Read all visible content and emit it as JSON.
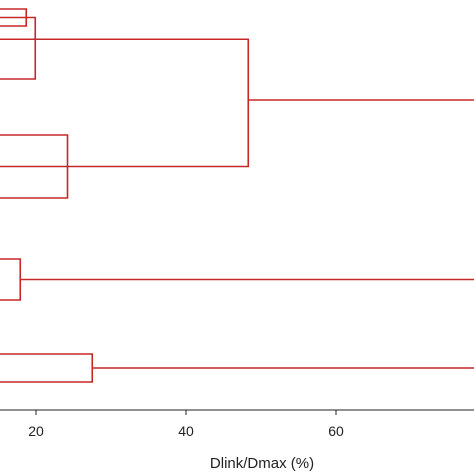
{
  "chart_data": {
    "type": "dendrogram",
    "xlabel": "Dlink/Dmax (%)",
    "xticks": [
      20,
      40,
      60
    ],
    "xlim": [
      15.3,
      80
    ],
    "orientation": "horizontal",
    "link_color": "#c62828",
    "leaf_rows": 8,
    "links": [
      {
        "height": 18.7,
        "rows": [
          0,
          1
        ]
      },
      {
        "height": 19.9,
        "rows": [
          0.5,
          2
        ]
      },
      {
        "height": 24.2,
        "rows": [
          3,
          4
        ]
      },
      {
        "height": 48.3,
        "rows": [
          1.25,
          3.5
        ]
      },
      {
        "height": 17.9,
        "rows": [
          5,
          6
        ]
      },
      {
        "height": 27.5,
        "rows": [
          7,
          8
        ]
      }
    ],
    "stubs": [
      {
        "height": 48.3,
        "row": 2.375
      },
      {
        "height": 17.9,
        "row": 5.5
      },
      {
        "height": 27.5,
        "row": 7.5
      }
    ]
  }
}
